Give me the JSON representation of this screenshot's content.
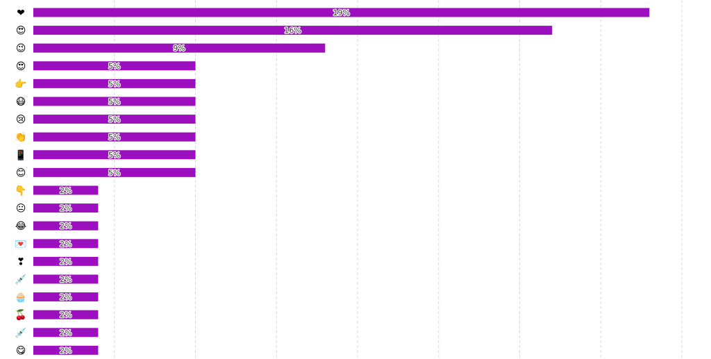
{
  "chart_data": {
    "type": "bar",
    "orientation": "horizontal",
    "categories": [
      "❤",
      "😍",
      "😉",
      "😍",
      "👉",
      "😷",
      "😢",
      "👏",
      "📱",
      "😊",
      "👇",
      "😐",
      "😂",
      "💌",
      "❣",
      "💉",
      "🧁",
      "🍒",
      "💉",
      "😋"
    ],
    "category_icons": [
      "heart-icon",
      "heart-eyes-face-icon",
      "winking-face-icon",
      "heart-eyes-face-icon",
      "pointing-right-icon",
      "mask-face-icon",
      "crying-face-icon",
      "clapping-hands-icon",
      "mobile-phone-icon",
      "smiling-face-icon",
      "pointing-down-icon",
      "neutral-face-icon",
      "laughing-face-icon",
      "love-letter-icon",
      "heart-exclamation-icon",
      "syringe-icon",
      "cupcake-icon",
      "cherries-icon",
      "syringe-icon",
      "yum-face-icon"
    ],
    "values": [
      19,
      16,
      9,
      5,
      5,
      5,
      5,
      5,
      5,
      5,
      2,
      2,
      2,
      2,
      2,
      2,
      2,
      2,
      2,
      2
    ],
    "labels": [
      "19%",
      "16%",
      "9%",
      "5%",
      "5%",
      "5%",
      "5%",
      "5%",
      "5%",
      "5%",
      "2%",
      "2%",
      "2%",
      "2%",
      "2%",
      "2%",
      "2%",
      "2%",
      "2%",
      "2%"
    ],
    "xlim": [
      0,
      20
    ],
    "grid": true,
    "bar_color": "#9b0fbf",
    "grid_color": "#d9d9d9"
  }
}
